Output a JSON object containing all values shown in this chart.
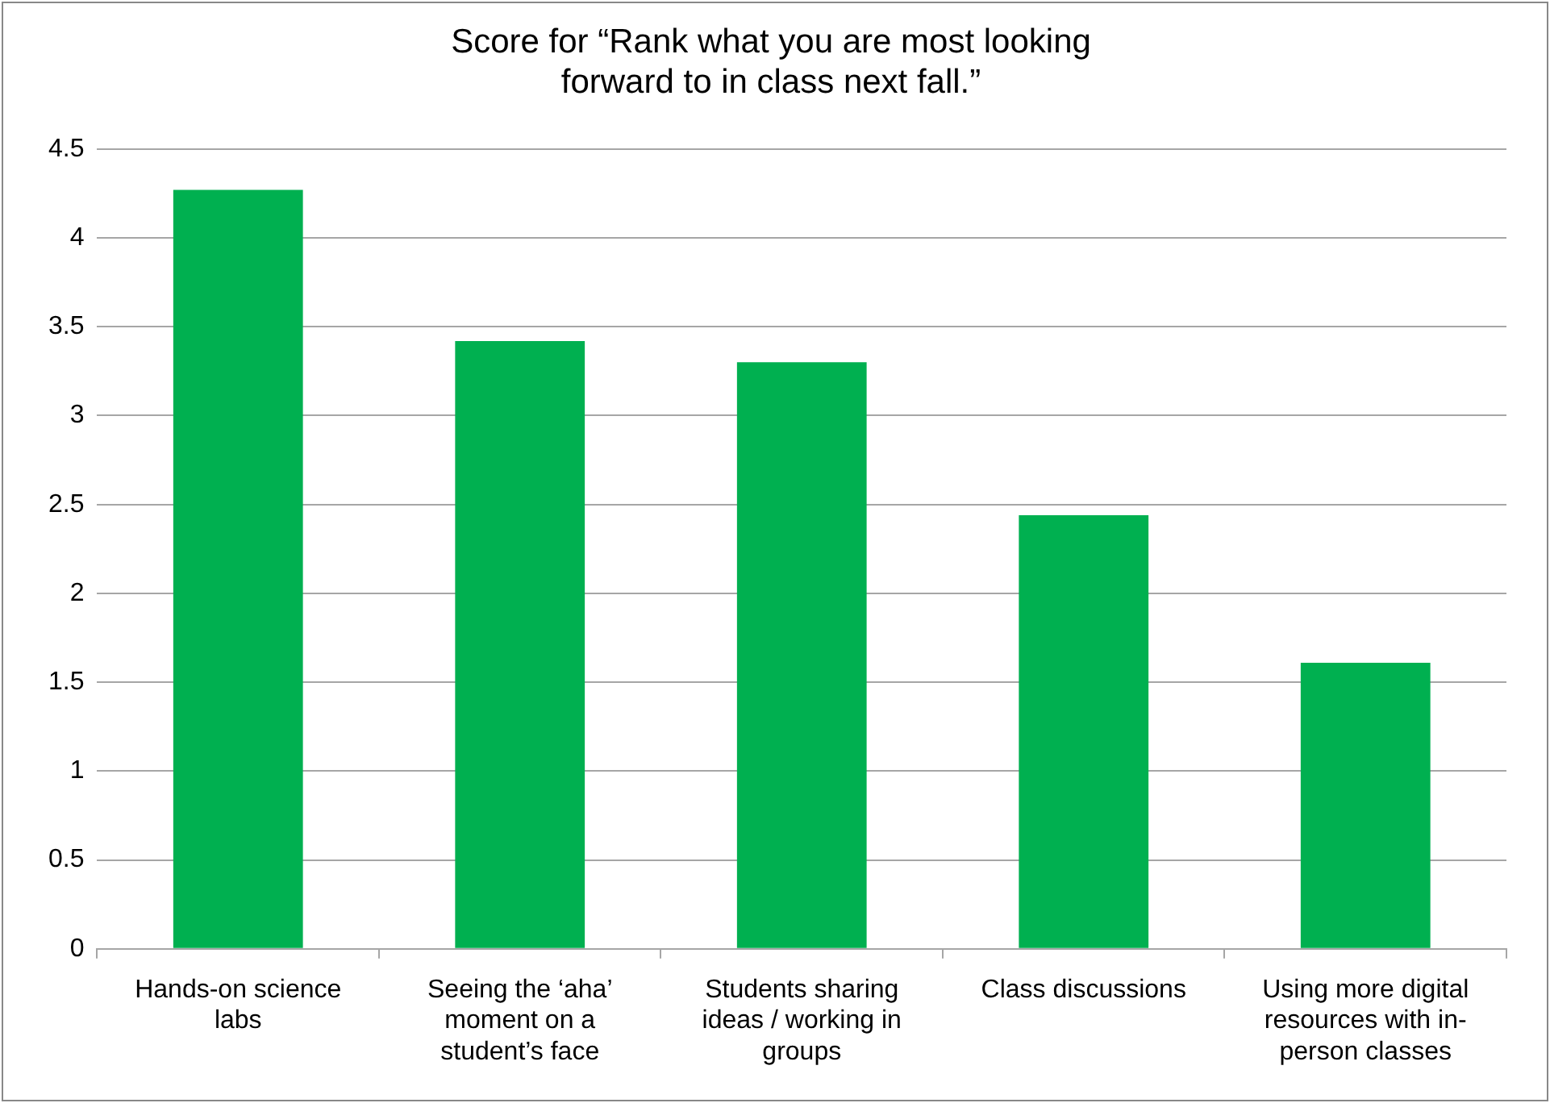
{
  "chart_data": {
    "type": "bar",
    "title": "Score for “Rank what you are most looking forward to in class next fall.”",
    "categories": [
      "Hands-on science labs",
      "Seeing the ‘aha’ moment on a student’s face",
      "Students sharing ideas / working in groups",
      "Class discussions",
      "Using more digital resources with in-person classes"
    ],
    "values": [
      4.27,
      3.42,
      3.3,
      2.44,
      1.61
    ],
    "color": "#00b050",
    "ylim": [
      0,
      4.5
    ],
    "yticks": [
      0,
      0.5,
      1,
      1.5,
      2,
      2.5,
      3,
      3.5,
      4,
      4.5
    ],
    "grid": "y",
    "legend": false
  }
}
